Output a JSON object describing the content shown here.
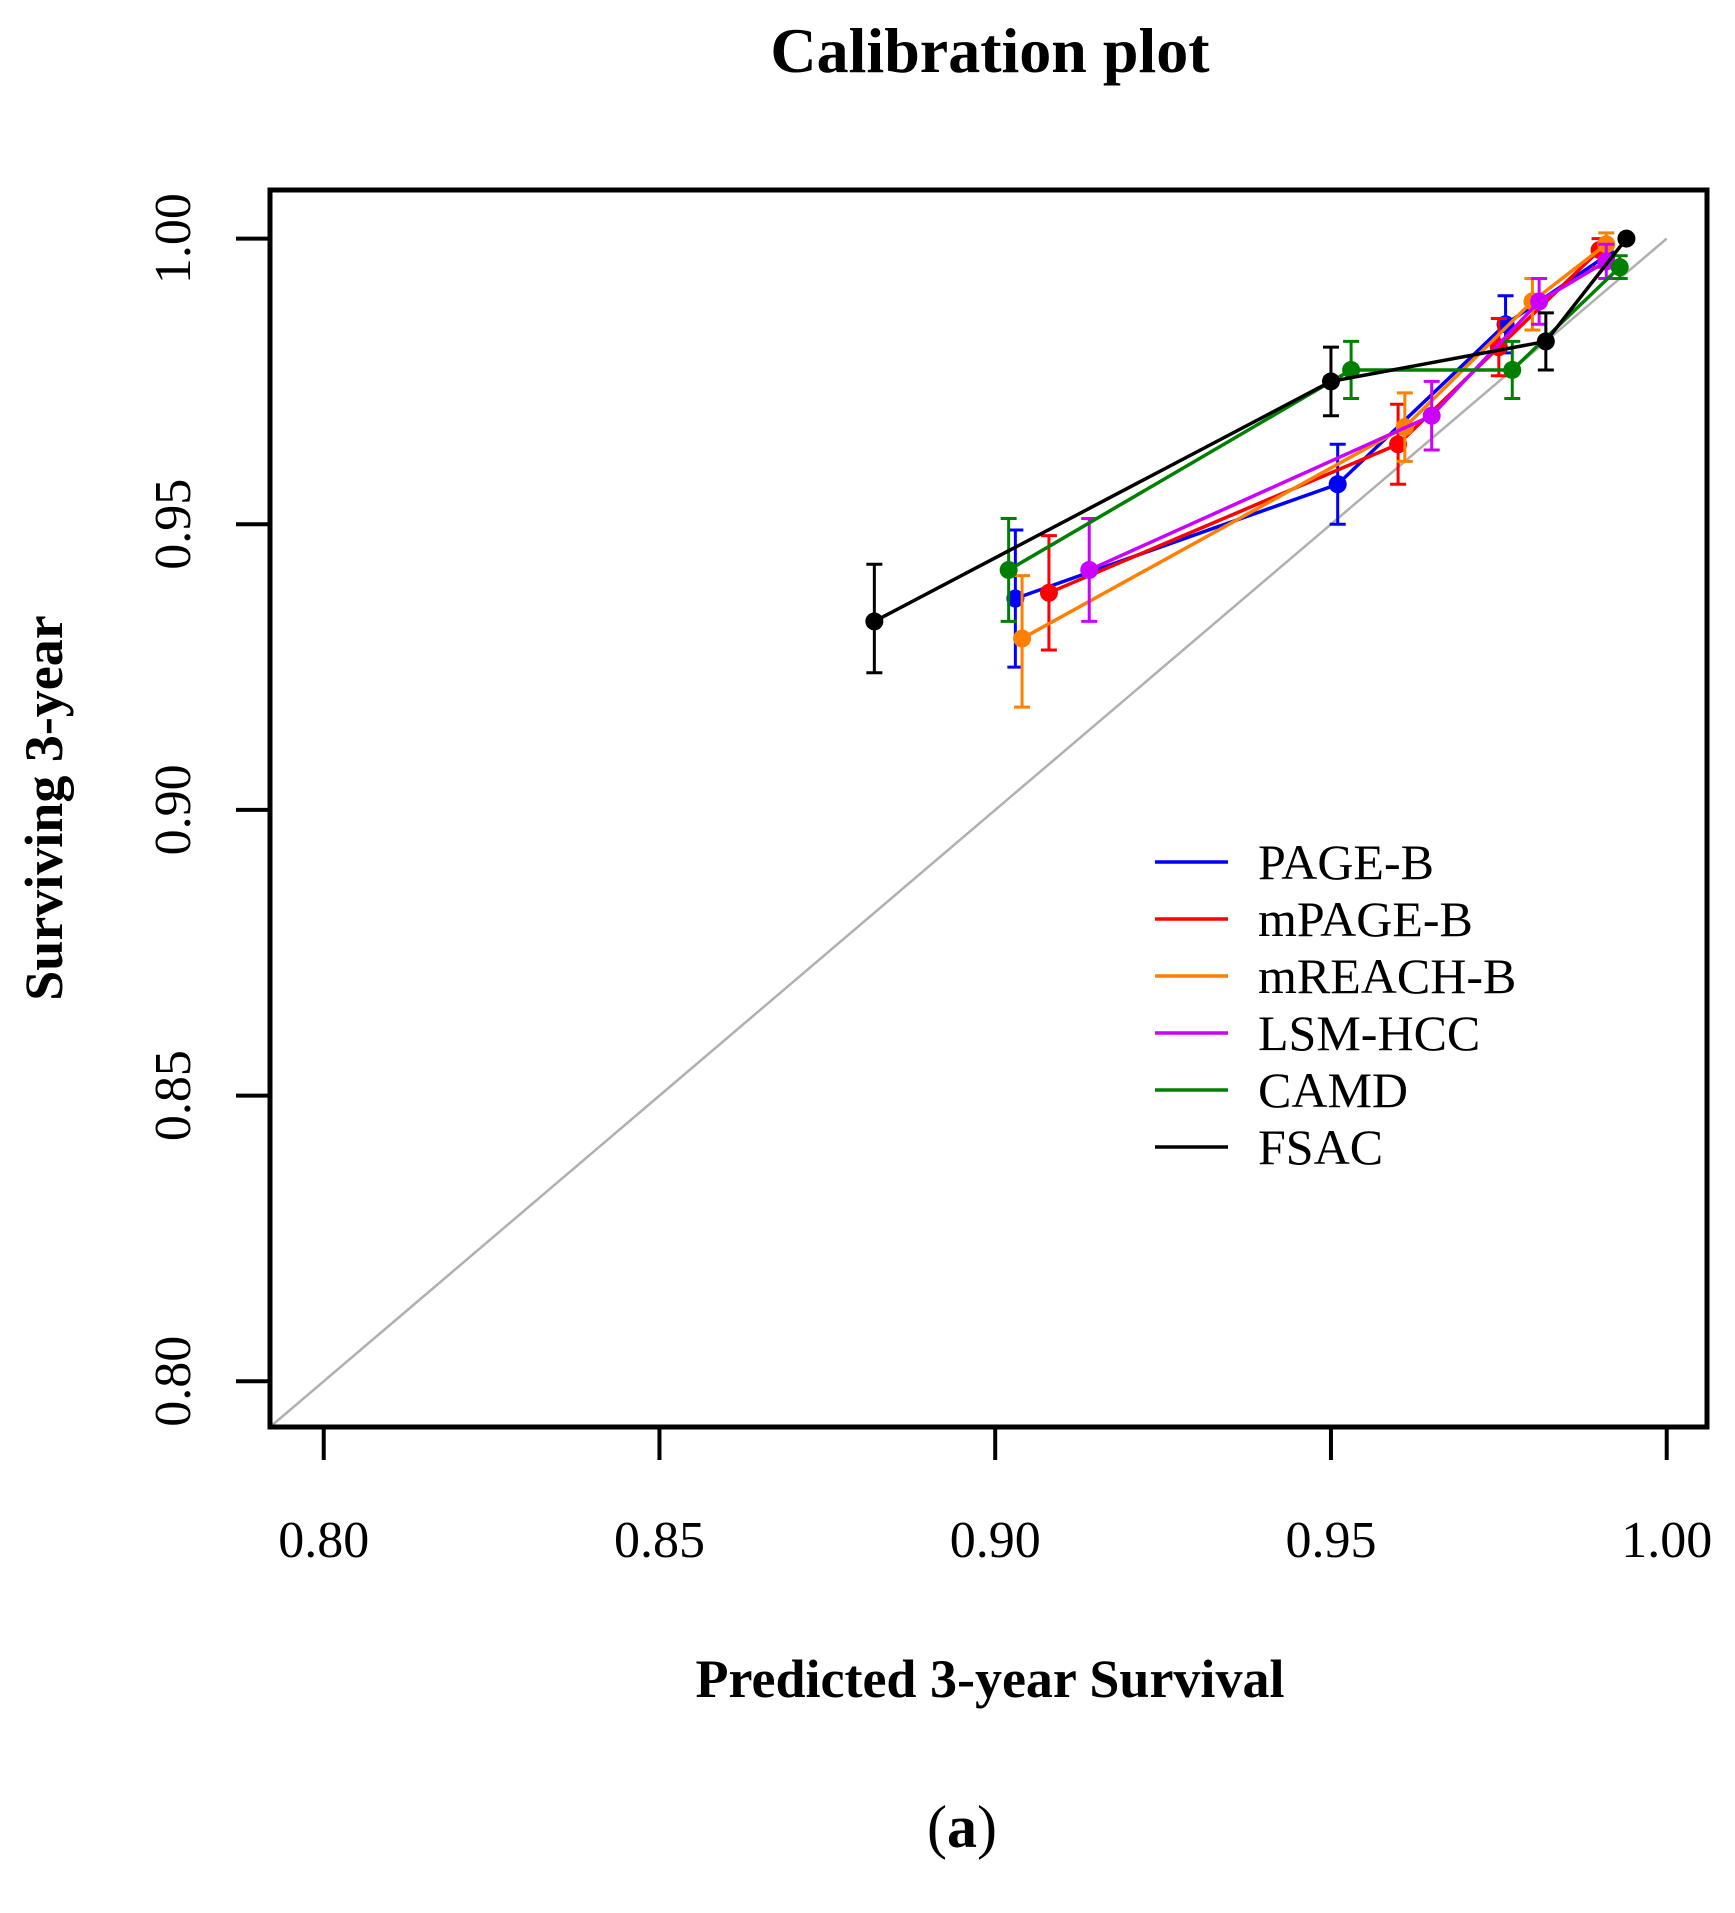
{
  "chart_data": {
    "type": "line",
    "title": "Calibration plot",
    "xlabel": "Predicted 3-year Survival",
    "ylabel": "Surviving 3-year",
    "xlim": [
      0.792,
      1.006
    ],
    "ylim": [
      0.792,
      1.0085
    ],
    "xticks": [
      0.8,
      0.85,
      0.9,
      0.95,
      1.0
    ],
    "xtick_labels": [
      "0.80",
      "0.85",
      "0.90",
      "0.95",
      "1.00"
    ],
    "yticks": [
      0.8,
      0.85,
      0.9,
      0.95,
      1.0
    ],
    "ytick_labels": [
      "0.80",
      "0.85",
      "0.90",
      "0.95",
      "1.00"
    ],
    "grid": false,
    "legend_position": "right-middle",
    "reference_line": {
      "name": "ideal",
      "color": "#b0b0b0",
      "x": [
        0.792,
        1.0
      ],
      "y": [
        0.792,
        1.0
      ]
    },
    "series": [
      {
        "name": "PAGE-B",
        "color": "#0000ff",
        "x": [
          0.903,
          0.951,
          0.976,
          0.991
        ],
        "y": [
          0.937,
          0.957,
          0.985,
          0.997
        ],
        "lo": [
          0.925,
          0.95,
          0.98,
          0.995
        ],
        "hi": [
          0.949,
          0.964,
          0.99,
          0.999
        ]
      },
      {
        "name": "mPAGE-B",
        "color": "#ff0000",
        "x": [
          0.908,
          0.96,
          0.975,
          0.99
        ],
        "y": [
          0.938,
          0.964,
          0.981,
          0.998
        ],
        "lo": [
          0.928,
          0.957,
          0.976,
          0.995
        ],
        "hi": [
          0.948,
          0.971,
          0.986,
          1.0
        ]
      },
      {
        "name": "mREACH-B",
        "color": "#ff7f00",
        "x": [
          0.904,
          0.961,
          0.98,
          0.991
        ],
        "y": [
          0.93,
          0.967,
          0.989,
          0.999
        ],
        "lo": [
          0.918,
          0.961,
          0.984,
          0.996
        ],
        "hi": [
          0.941,
          0.973,
          0.993,
          1.001
        ]
      },
      {
        "name": "LSM-HCC",
        "color": "#cc00ff",
        "x": [
          0.914,
          0.965,
          0.981,
          0.991
        ],
        "y": [
          0.942,
          0.969,
          0.989,
          0.996
        ],
        "lo": [
          0.933,
          0.963,
          0.985,
          0.993
        ],
        "hi": [
          0.951,
          0.975,
          0.993,
          0.999
        ]
      },
      {
        "name": "CAMD",
        "color": "#008000",
        "x": [
          0.902,
          0.953,
          0.977,
          0.993
        ],
        "y": [
          0.942,
          0.977,
          0.977,
          0.995
        ],
        "lo": [
          0.933,
          0.972,
          0.972,
          0.993
        ],
        "hi": [
          0.951,
          0.982,
          0.982,
          0.997
        ]
      },
      {
        "name": "FSAC",
        "color": "#000000",
        "x": [
          0.882,
          0.95,
          0.982,
          0.994
        ],
        "y": [
          0.933,
          0.975,
          0.982,
          1.0
        ],
        "lo": [
          0.924,
          0.969,
          0.977,
          0.9995
        ],
        "hi": [
          0.943,
          0.981,
          0.987,
          1.0005
        ]
      }
    ]
  },
  "panel_label": {
    "open": "(",
    "letter": "a",
    "close": ")"
  }
}
